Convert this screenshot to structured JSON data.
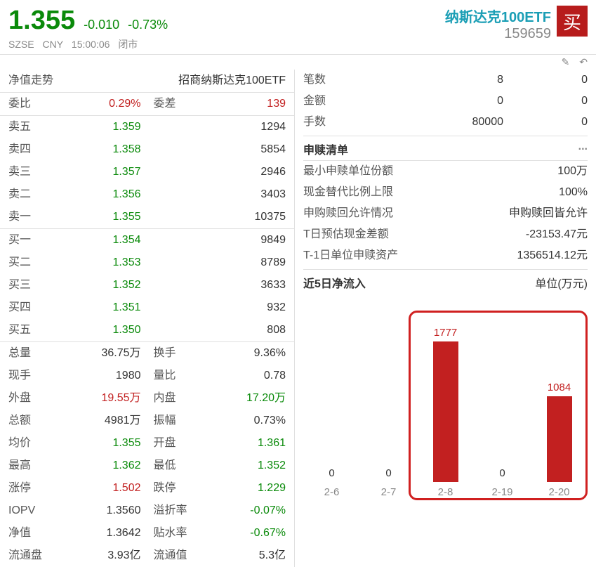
{
  "header": {
    "price": "1.355",
    "change": "-0.010",
    "change_pct": "-0.73%",
    "exchange": "SZSE",
    "currency": "CNY",
    "time": "15:00:06",
    "status": "闭市",
    "name": "纳斯达克100ETF",
    "code": "159659",
    "buy_label": "买"
  },
  "icons": {
    "edit": "✎",
    "back": "↶"
  },
  "title_row": {
    "left": "净值走势",
    "right": "招商纳斯达克100ETF"
  },
  "ratio_row": {
    "commit_ratio_label": "委比",
    "commit_ratio": "0.29%",
    "commit_diff_label": "委差",
    "commit_diff": "139"
  },
  "sells": [
    {
      "label": "卖五",
      "price": "1.359",
      "qty": "1294"
    },
    {
      "label": "卖四",
      "price": "1.358",
      "qty": "5854"
    },
    {
      "label": "卖三",
      "price": "1.357",
      "qty": "2946"
    },
    {
      "label": "卖二",
      "price": "1.356",
      "qty": "3403"
    },
    {
      "label": "卖一",
      "price": "1.355",
      "qty": "10375"
    }
  ],
  "buys": [
    {
      "label": "买一",
      "price": "1.354",
      "qty": "9849"
    },
    {
      "label": "买二",
      "price": "1.353",
      "qty": "8789"
    },
    {
      "label": "买三",
      "price": "1.352",
      "qty": "3633"
    },
    {
      "label": "买四",
      "price": "1.351",
      "qty": "932"
    },
    {
      "label": "买五",
      "price": "1.350",
      "qty": "808"
    }
  ],
  "stats": [
    {
      "l1": "总量",
      "v1": "36.75万",
      "c1": "gray",
      "l2": "换手",
      "v2": "9.36%",
      "c2": "gray"
    },
    {
      "l1": "现手",
      "v1": "1980",
      "c1": "gray",
      "l2": "量比",
      "v2": "0.78",
      "c2": "gray"
    },
    {
      "l1": "外盘",
      "v1": "19.55万",
      "c1": "red",
      "l2": "内盘",
      "v2": "17.20万",
      "c2": "green"
    },
    {
      "l1": "总额",
      "v1": "4981万",
      "c1": "gray",
      "l2": "振幅",
      "v2": "0.73%",
      "c2": "gray"
    },
    {
      "l1": "均价",
      "v1": "1.355",
      "c1": "green",
      "l2": "开盘",
      "v2": "1.361",
      "c2": "green"
    },
    {
      "l1": "最高",
      "v1": "1.362",
      "c1": "green",
      "l2": "最低",
      "v2": "1.352",
      "c2": "green"
    },
    {
      "l1": "涨停",
      "v1": "1.502",
      "c1": "red",
      "l2": "跌停",
      "v2": "1.229",
      "c2": "green"
    },
    {
      "l1": "IOPV",
      "v1": "1.3560",
      "c1": "gray",
      "l2": "溢折率",
      "v2": "-0.07%",
      "c2": "green"
    },
    {
      "l1": "净值",
      "v1": "1.3642",
      "c1": "gray",
      "l2": "贴水率",
      "v2": "-0.67%",
      "c2": "green"
    },
    {
      "l1": "流通盘",
      "v1": "3.93亿",
      "c1": "gray",
      "l2": "流通值",
      "v2": "5.3亿",
      "c2": "gray"
    }
  ],
  "right_top": [
    {
      "label": "笔数",
      "v1": "8",
      "v2": "0"
    },
    {
      "label": "金额",
      "v1": "0",
      "v2": "0"
    },
    {
      "label": "手数",
      "v1": "80000",
      "v2": "0"
    }
  ],
  "redemption": {
    "title": "申赎清单",
    "rows": [
      {
        "label": "最小申赎单位份额",
        "value": "100万"
      },
      {
        "label": "现金替代比例上限",
        "value": "100%"
      },
      {
        "label": "申购赎回允许情况",
        "value": "申购赎回皆允许"
      },
      {
        "label": "T日预估现金差额",
        "value": "-23153.47元"
      },
      {
        "label": "T-1日单位申赎资产",
        "value": "1356514.12元"
      }
    ]
  },
  "flow_chart": {
    "title": "近5日净流入",
    "unit": "单位(万元)",
    "type": "bar",
    "bar_color": "#c22020",
    "max_value": 1777,
    "background_color": "#ffffff",
    "highlight_border_color": "#d02020",
    "data": [
      {
        "x": "2-6",
        "value": 0,
        "label": "0",
        "label_color": "gray"
      },
      {
        "x": "2-7",
        "value": 0,
        "label": "0",
        "label_color": "gray"
      },
      {
        "x": "2-8",
        "value": 1777,
        "label": "1777",
        "label_color": "red"
      },
      {
        "x": "2-19",
        "value": 0,
        "label": "0",
        "label_color": "gray"
      },
      {
        "x": "2-20",
        "value": 1084,
        "label": "1084",
        "label_color": "red"
      }
    ]
  }
}
